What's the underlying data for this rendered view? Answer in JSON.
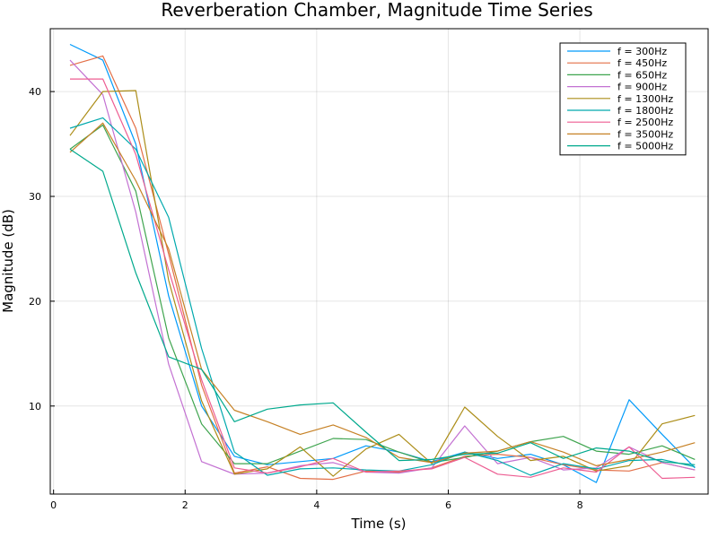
{
  "chart_data": {
    "type": "line",
    "title": "Reverberation Chamber, Magnitude Time Series",
    "xlabel": "Time (s)",
    "ylabel": "Magnitude (dB)",
    "xlim": [
      -0.05,
      9.95
    ],
    "ylim": [
      1.6,
      46
    ],
    "xticks": [
      0,
      2,
      4,
      6,
      8
    ],
    "yticks": [
      10,
      20,
      30,
      40
    ],
    "grid": true,
    "legend_position": "top-right",
    "x": [
      0.25,
      0.75,
      1.25,
      1.75,
      2.25,
      2.75,
      3.25,
      3.75,
      4.25,
      4.75,
      5.25,
      5.75,
      6.25,
      6.75,
      7.25,
      7.75,
      8.25,
      8.75,
      9.25,
      9.75
    ],
    "series": [
      {
        "name": "f = 300Hz",
        "color": "#009AFA",
        "values": [
          44.5,
          43.0,
          35.0,
          20.5,
          10.0,
          5.2,
          4.4,
          4.7,
          5.0,
          6.2,
          5.6,
          4.7,
          5.6,
          5.0,
          5.4,
          4.4,
          2.7,
          10.6,
          7.3,
          4.1
        ]
      },
      {
        "name": "f = 450Hz",
        "color": "#E36F47",
        "values": [
          42.5,
          43.4,
          36.5,
          24.5,
          12.0,
          3.6,
          4.2,
          3.1,
          3.0,
          3.8,
          3.7,
          4.1,
          5.2,
          5.4,
          5.1,
          4.4,
          3.9,
          3.8,
          4.6,
          3.9
        ]
      },
      {
        "name": "f = 650Hz",
        "color": "#3EA44E",
        "values": [
          34.5,
          36.8,
          30.5,
          16.5,
          8.3,
          4.5,
          4.5,
          5.7,
          6.9,
          6.8,
          5.6,
          4.6,
          5.1,
          5.7,
          6.6,
          7.1,
          5.7,
          5.4,
          6.2,
          4.9
        ]
      },
      {
        "name": "f = 900Hz",
        "color": "#C371D2",
        "values": [
          43.0,
          39.7,
          28.5,
          14.0,
          4.7,
          3.5,
          3.6,
          4.3,
          4.6,
          3.7,
          3.6,
          4.1,
          8.1,
          4.5,
          5.1,
          3.9,
          4.1,
          6.1,
          4.6,
          3.9
        ]
      },
      {
        "name": "f = 1300Hz",
        "color": "#AC8D18",
        "values": [
          35.8,
          40.0,
          40.1,
          22.0,
          10.5,
          3.5,
          4.0,
          6.1,
          3.3,
          5.9,
          7.3,
          4.5,
          9.9,
          7.1,
          4.8,
          5.2,
          3.8,
          4.3,
          8.3,
          9.1
        ]
      },
      {
        "name": "f = 1800Hz",
        "color": "#00A9AD",
        "values": [
          36.5,
          37.5,
          34.5,
          28.0,
          15.5,
          5.6,
          3.4,
          4.0,
          4.1,
          3.9,
          3.8,
          4.4,
          5.6,
          4.8,
          3.4,
          4.5,
          4.0,
          4.8,
          4.9,
          4.2
        ]
      },
      {
        "name": "f = 2500Hz",
        "color": "#ED5D92",
        "values": [
          41.2,
          41.2,
          34.0,
          23.0,
          12.5,
          4.1,
          3.6,
          4.2,
          5.0,
          3.7,
          3.8,
          4.0,
          5.1,
          3.5,
          3.2,
          4.1,
          3.7,
          6.1,
          3.1,
          3.2
        ]
      },
      {
        "name": "f = 3500Hz",
        "color": "#C68125",
        "values": [
          34.2,
          37.0,
          31.5,
          25.0,
          13.5,
          9.6,
          8.5,
          7.3,
          8.2,
          7.0,
          5.1,
          4.6,
          5.5,
          5.7,
          6.6,
          5.6,
          4.3,
          4.9,
          5.6,
          6.5
        ]
      },
      {
        "name": "f = 5000Hz",
        "color": "#00A98D",
        "values": [
          34.5,
          32.4,
          22.7,
          14.7,
          13.5,
          8.5,
          9.7,
          10.1,
          10.3,
          7.5,
          4.8,
          4.9,
          5.4,
          5.5,
          6.5,
          5.0,
          6.0,
          5.7,
          4.7,
          4.4
        ]
      }
    ]
  }
}
